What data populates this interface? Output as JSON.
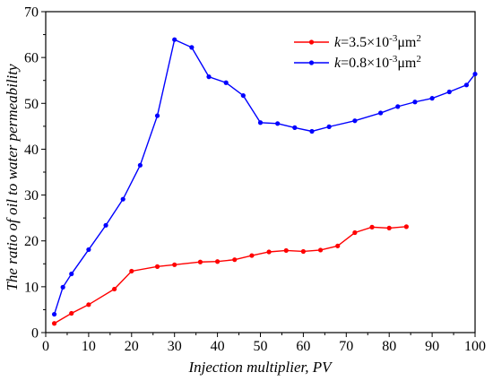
{
  "chart_data": {
    "type": "line",
    "title": "",
    "xlabel": "Injection multiplier, PV",
    "ylabel": "The ratio of oil to water permeability",
    "xlim": [
      0,
      100
    ],
    "ylim": [
      0,
      70
    ],
    "x_ticks": [
      0,
      10,
      20,
      30,
      40,
      50,
      60,
      70,
      80,
      90,
      100
    ],
    "y_ticks": [
      0,
      10,
      20,
      30,
      40,
      50,
      60,
      70
    ],
    "grid": false,
    "legend_position": "top-right",
    "series": [
      {
        "name": "k=3.5×10⁻³μm²",
        "legend": {
          "k": "k",
          "rest": "=3.5×10",
          "exp": "-3",
          "unit": "μm",
          "unit_exp": "2"
        },
        "color": "#ff0000",
        "x": [
          2,
          6,
          10,
          16,
          20,
          26,
          30,
          36,
          40,
          44,
          48,
          52,
          56,
          60,
          64,
          68,
          72,
          76,
          80,
          84
        ],
        "y": [
          2.0,
          4.2,
          6.1,
          9.5,
          13.4,
          14.4,
          14.8,
          15.4,
          15.5,
          15.9,
          16.8,
          17.6,
          17.9,
          17.7,
          18.0,
          18.9,
          21.8,
          23.0,
          22.8,
          23.1
        ]
      },
      {
        "name": "k=0.8×10⁻³μm²",
        "legend": {
          "k": "k",
          "rest": "=0.8×10",
          "exp": "-3",
          "unit": "μm",
          "unit_exp": "2"
        },
        "color": "#0000ff",
        "x": [
          2,
          4,
          6,
          10,
          14,
          18,
          22,
          26,
          30,
          34,
          38,
          42,
          46,
          50,
          54,
          58,
          62,
          66,
          72,
          78,
          82,
          86,
          90,
          94,
          98,
          100
        ],
        "y": [
          4.0,
          9.9,
          12.8,
          18.1,
          23.4,
          29.1,
          36.5,
          47.3,
          63.9,
          62.2,
          55.8,
          54.5,
          51.7,
          45.8,
          45.6,
          44.7,
          43.9,
          44.9,
          46.2,
          47.9,
          49.3,
          50.3,
          51.1,
          52.5,
          54.0,
          56.4
        ]
      }
    ]
  }
}
